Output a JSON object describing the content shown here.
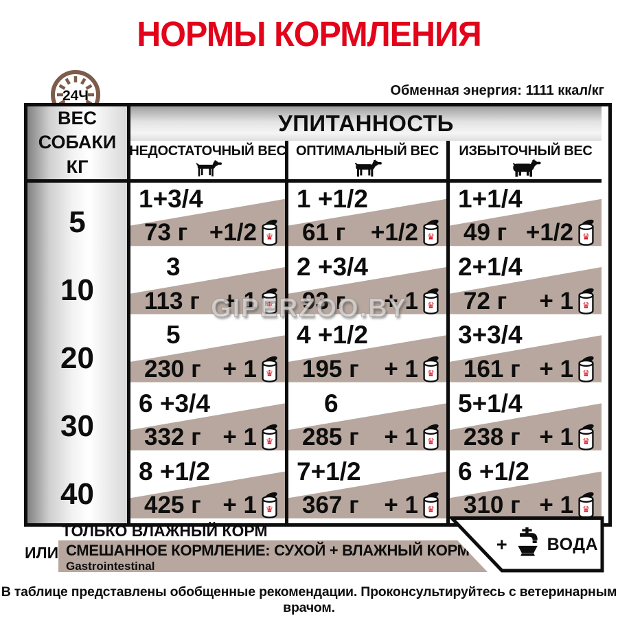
{
  "title": "НОРМЫ КОРМЛЕНИЯ",
  "energy_note": "Обменная энергия: 1111 ккал/кг",
  "clock_label": "24Ч",
  "watermark": "GIPERZOO.BY",
  "colors": {
    "accent_red": "#e2041a",
    "band_beige": "#b7a79e",
    "clock_brown": "#7e5c4b",
    "ink_black": "#0d0d0d"
  },
  "icons": {
    "clock": "24h-clock-icon",
    "dog_thin": "thin-dog-icon",
    "dog_normal": "normal-dog-icon",
    "dog_fat": "fat-dog-icon",
    "can": "wet-food-can-icon",
    "water": "water-tap-bowl-icon"
  },
  "table": {
    "weight_header_lines": [
      "ВЕС",
      "СОБАКИ",
      "КГ"
    ],
    "condition_header": "УПИТАННОСТЬ",
    "columns": [
      {
        "label": "НЕДОСТАТОЧНЫЙ ВЕС",
        "icon": "thin-dog-icon"
      },
      {
        "label": "ОПТИМАЛЬНЫЙ ВЕС",
        "icon": "normal-dog-icon"
      },
      {
        "label": "ИЗБЫТОЧНЫЙ ВЕС",
        "icon": "fat-dog-icon"
      }
    ],
    "rows": [
      {
        "weight": "5",
        "cells": [
          {
            "dry": "1+3/4",
            "grams": "73 г",
            "cans": "+1/2"
          },
          {
            "dry": "1 +1/2",
            "grams": "61 г",
            "cans": "+1/2"
          },
          {
            "dry": "1+1/4",
            "grams": "49 г",
            "cans": "+1/2"
          }
        ]
      },
      {
        "weight": "10",
        "cells": [
          {
            "dry": "3",
            "grams": "113 г",
            "cans": "+ 1"
          },
          {
            "dry": "2 +3/4",
            "grams": "93 г",
            "cans": "+ 1"
          },
          {
            "dry": "2+1/4",
            "grams": "72 г",
            "cans": "+ 1"
          }
        ]
      },
      {
        "weight": "20",
        "cells": [
          {
            "dry": "5",
            "grams": "230 г",
            "cans": "+ 1"
          },
          {
            "dry": "4 +1/2",
            "grams": "195 г",
            "cans": "+ 1"
          },
          {
            "dry": "3+3/4",
            "grams": "161 г",
            "cans": "+ 1"
          }
        ]
      },
      {
        "weight": "30",
        "cells": [
          {
            "dry": "6 +3/4",
            "grams": "332 г",
            "cans": "+ 1"
          },
          {
            "dry": "6",
            "grams": "285 г",
            "cans": "+ 1"
          },
          {
            "dry": "5+1/4",
            "grams": "238 г",
            "cans": "+ 1"
          }
        ]
      },
      {
        "weight": "40",
        "cells": [
          {
            "dry": "8 +1/2",
            "grams": "425 г",
            "cans": "+ 1"
          },
          {
            "dry": "7+1/2",
            "grams": "367 г",
            "cans": "+ 1"
          },
          {
            "dry": "6 +1/2",
            "grams": "310 г",
            "cans": "+ 1"
          }
        ]
      }
    ]
  },
  "legend": {
    "wet_only": "ТОЛЬКО ВЛАЖНЫЙ КОРМ",
    "or_label": "ИЛИ",
    "mixed_label": "СМЕШАННОЕ КОРМЛЕНИЕ: СУХОЙ + ВЛАЖНЫЙ КОРМ",
    "product_name": "Gastrointestinal",
    "water_plus": "+",
    "water_label": "ВОДА"
  },
  "footer_note": "В таблице представлены обобщенные рекомендации. Проконсультируйтесь с ветеринарным врачом."
}
